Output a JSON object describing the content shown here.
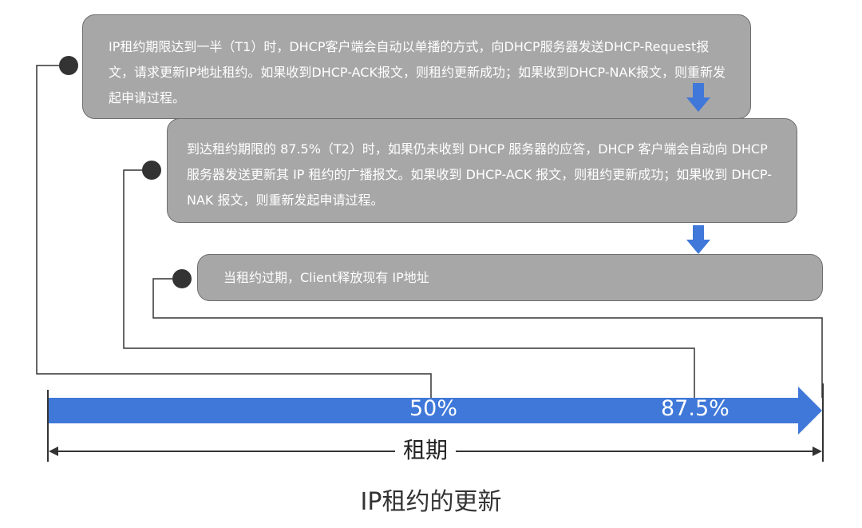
{
  "steps": [
    {
      "text": "IP租约期限达到一半（T1）时，DHCP客户端会自动以单播的方式，向DHCP服务器发送DHCP-Request报文，请求更新IP地址租约。如果收到DHCP-ACK报文，则租约更新成功；如果收到DHCP-NAK报文，则重新发起申请过程。"
    },
    {
      "text": "到达租约期限的 87.5%（T2）时，如果仍未收到 DHCP 服务器的应答，DHCP 客户端会自动向 DHCP 服务器发送更新其 IP 租约的广播报文。如果收到 DHCP-ACK 报文，则租约更新成功；如果收到 DHCP-NAK 报文，则重新发起申请过程。"
    },
    {
      "text": "当租约过期，Client释放现有 IP地址"
    }
  ],
  "timeline": {
    "mark1": "50%",
    "mark2": "87.5%",
    "lease_label": "租期"
  },
  "title": "IP租约的更新",
  "colors": {
    "box": "#a7a7a7",
    "arrow": "#3f78d8",
    "line": "#333333"
  }
}
